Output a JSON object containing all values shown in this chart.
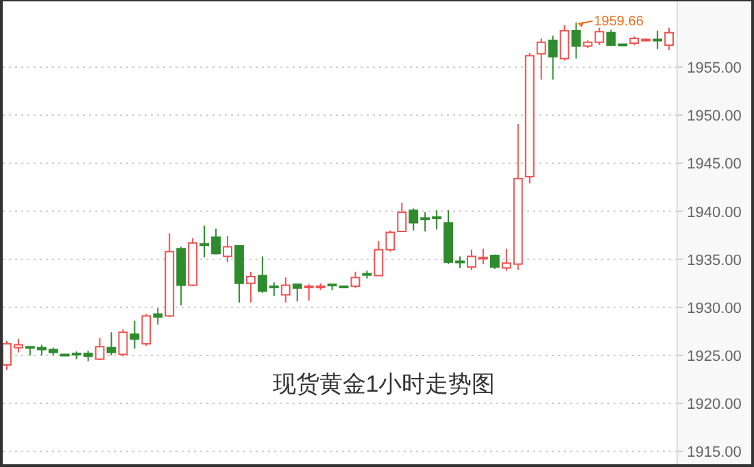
{
  "chart_data": {
    "type": "candlestick",
    "title": "现货黄金1小时走势图",
    "categories": [
      null,
      null,
      null,
      null,
      null,
      null,
      null,
      null,
      null,
      null,
      null,
      null,
      null,
      null,
      null,
      null,
      null,
      null,
      null,
      null,
      null,
      null,
      null,
      null,
      null,
      null,
      null,
      null,
      null,
      null,
      null,
      null,
      null,
      null,
      null,
      null,
      null,
      null,
      null,
      null,
      null,
      null,
      null,
      null,
      null,
      null,
      null,
      null,
      null,
      null,
      null,
      null,
      null,
      null,
      null,
      null,
      null,
      null
    ],
    "ohlc": [
      [
        1924.0,
        1926.5,
        1923.5,
        1926.2
      ],
      [
        1925.8,
        1926.7,
        1925.3,
        1926.1
      ],
      [
        1925.9,
        1925.9,
        1925.0,
        1925.8
      ],
      [
        1925.8,
        1926.1,
        1925.0,
        1925.6
      ],
      [
        1925.6,
        1925.8,
        1925.0,
        1925.3
      ],
      [
        1925.1,
        1925.1,
        1925.1,
        1925.1
      ],
      [
        1925.2,
        1925.4,
        1924.6,
        1925.1
      ],
      [
        1925.2,
        1925.5,
        1924.4,
        1924.9
      ],
      [
        1924.6,
        1926.8,
        1924.5,
        1925.9
      ],
      [
        1925.8,
        1927.4,
        1925.0,
        1925.3
      ],
      [
        1925.1,
        1927.7,
        1924.9,
        1927.4
      ],
      [
        1927.2,
        1928.6,
        1925.7,
        1926.7
      ],
      [
        1926.2,
        1929.3,
        1926.0,
        1929.1
      ],
      [
        1929.3,
        1929.9,
        1928.2,
        1929.0
      ],
      [
        1929.1,
        1937.7,
        1929.0,
        1935.8
      ],
      [
        1936.1,
        1936.3,
        1930.2,
        1932.3
      ],
      [
        1932.3,
        1937.2,
        1932.2,
        1936.7
      ],
      [
        1936.6,
        1938.5,
        1935.2,
        1936.5
      ],
      [
        1937.3,
        1938.2,
        1935.5,
        1935.6
      ],
      [
        1935.3,
        1937.4,
        1934.7,
        1936.3
      ],
      [
        1936.4,
        1936.4,
        1930.5,
        1932.5
      ],
      [
        1932.5,
        1933.7,
        1930.5,
        1933.2
      ],
      [
        1933.3,
        1935.3,
        1931.5,
        1931.7
      ],
      [
        1932.2,
        1932.6,
        1931.2,
        1932.1
      ],
      [
        1931.3,
        1933.1,
        1930.5,
        1932.3
      ],
      [
        1932.4,
        1932.4,
        1930.6,
        1932.0
      ],
      [
        1932.1,
        1932.4,
        1930.7,
        1932.2
      ],
      [
        1932.1,
        1932.5,
        1931.8,
        1932.2
      ],
      [
        1932.4,
        1932.4,
        1931.8,
        1932.3
      ],
      [
        1932.2,
        1932.2,
        1932.1,
        1932.1
      ],
      [
        1932.2,
        1933.7,
        1932.0,
        1933.1
      ],
      [
        1933.5,
        1933.8,
        1933.0,
        1933.4
      ],
      [
        1933.3,
        1936.9,
        1933.3,
        1936.0
      ],
      [
        1936.0,
        1938.0,
        1935.8,
        1937.8
      ],
      [
        1937.9,
        1940.9,
        1937.9,
        1939.9
      ],
      [
        1940.1,
        1940.3,
        1938.0,
        1938.8
      ],
      [
        1939.3,
        1939.9,
        1937.9,
        1939.2
      ],
      [
        1939.4,
        1940.1,
        1938.1,
        1939.3
      ],
      [
        1938.8,
        1940.1,
        1934.5,
        1934.7
      ],
      [
        1934.8,
        1935.3,
        1934.1,
        1934.7
      ],
      [
        1934.2,
        1936.0,
        1933.9,
        1935.3
      ],
      [
        1935.1,
        1936.1,
        1934.5,
        1935.2
      ],
      [
        1935.4,
        1935.5,
        1934.0,
        1934.2
      ],
      [
        1934.1,
        1936.1,
        1933.8,
        1934.6
      ],
      [
        1934.5,
        1949.1,
        1933.9,
        1943.4
      ],
      [
        1943.6,
        1956.5,
        1942.9,
        1956.2
      ],
      [
        1956.4,
        1958.0,
        1953.7,
        1957.6
      ],
      [
        1957.8,
        1958.3,
        1953.7,
        1956.1
      ],
      [
        1955.9,
        1959.4,
        1955.7,
        1958.8
      ],
      [
        1958.8,
        1959.66,
        1955.9,
        1957.2
      ],
      [
        1957.2,
        1957.8,
        1957.0,
        1957.6
      ],
      [
        1957.6,
        1959.1,
        1957.3,
        1958.7
      ],
      [
        1958.6,
        1958.9,
        1957.3,
        1957.3
      ],
      [
        1957.4,
        1957.4,
        1957.4,
        1957.4
      ],
      [
        1957.5,
        1958.2,
        1957.3,
        1958.0
      ],
      [
        1957.8,
        1958.0,
        1957.7,
        1957.9
      ],
      [
        1957.9,
        1958.8,
        1956.9,
        1957.8
      ],
      [
        1957.3,
        1959.1,
        1956.8,
        1958.6
      ]
    ],
    "colors": [
      "#f05050",
      "#f05050",
      "#2e8b2e",
      "#2e8b2e",
      "#2e8b2e",
      "#2e8b2e",
      "#2e8b2e",
      "#2e8b2e",
      "#f05050",
      "#2e8b2e",
      "#f05050",
      "#2e8b2e",
      "#f05050",
      "#2e8b2e",
      "#f05050",
      "#2e8b2e",
      "#f05050",
      "#2e8b2e",
      "#2e8b2e",
      "#f05050",
      "#2e8b2e",
      "#f05050",
      "#2e8b2e",
      "#2e8b2e",
      "#f05050",
      "#2e8b2e",
      "#f05050",
      "#f05050",
      "#2e8b2e",
      "#2e8b2e",
      "#f05050",
      "#2e8b2e",
      "#f05050",
      "#f05050",
      "#f05050",
      "#2e8b2e",
      "#2e8b2e",
      "#2e8b2e",
      "#2e8b2e",
      "#2e8b2e",
      "#f05050",
      "#f05050",
      "#2e8b2e",
      "#f05050",
      "#f05050",
      "#f05050",
      "#f05050",
      "#2e8b2e",
      "#f05050",
      "#2e8b2e",
      "#f05050",
      "#f05050",
      "#2e8b2e",
      "#2e8b2e",
      "#f05050",
      "#f05050",
      "#2e8b2e",
      "#f05050"
    ],
    "ylim": [
      1913.8,
      1962.0
    ],
    "yticks": [
      {
        "value": 1915,
        "label": "1915.00"
      },
      {
        "value": 1920,
        "label": "1920.00"
      },
      {
        "value": 1925,
        "label": "1925.00"
      },
      {
        "value": 1930,
        "label": "1930.00"
      },
      {
        "value": 1935,
        "label": "1935.00"
      },
      {
        "value": 1940,
        "label": "1940.00"
      },
      {
        "value": 1945,
        "label": "1945.00"
      },
      {
        "value": 1950,
        "label": "1950.00"
      },
      {
        "value": 1955,
        "label": "1955.00"
      }
    ],
    "grid": "y",
    "tick_labels": "y",
    "annotations": [
      "1959.66"
    ]
  }
}
